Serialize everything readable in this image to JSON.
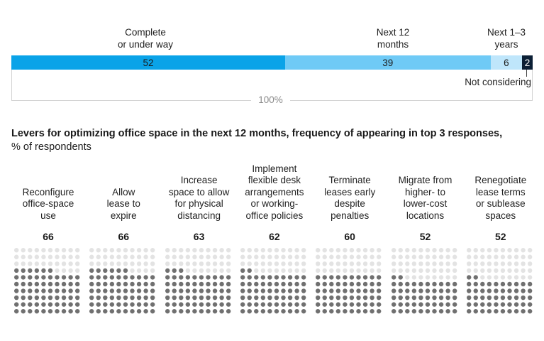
{
  "stacked_bar": {
    "total_label": "100%",
    "not_considering_label": "Not considering",
    "segments": [
      {
        "label_lines": [
          "Complete",
          "or under way"
        ],
        "value": 52,
        "color": "#0aa3e8",
        "text_color": "#1a1a1a"
      },
      {
        "label_lines": [
          "Next 12",
          "months"
        ],
        "value": 39,
        "color": "#6fcaf6",
        "text_color": "#1a1a1a"
      },
      {
        "label_lines": [
          "Next 1–3",
          "years"
        ],
        "value": 6,
        "color": "#bfe6fb",
        "text_color": "#1a1a1a"
      },
      {
        "label_lines": [],
        "value": 2,
        "color": "#0b1f35",
        "text_color": "#ffffff"
      }
    ]
  },
  "subtitle": {
    "bold": "Levers for optimizing office space in the next 12 months, frequency of appearing in top 3 responses,",
    "normal": "% of respondents"
  },
  "chart_data": {
    "type": "bar",
    "title": "Levers for optimizing office space in the next 12 months, frequency of appearing in top 3 responses,",
    "ylabel": "% of respondents",
    "categories": [
      "Reconfigure office-space use",
      "Allow lease to expire",
      "Increase space to allow for physical distancing",
      "Implement flexible desk arrangements or working-office policies",
      "Terminate leases early despite penalties",
      "Migrate from higher- to lower-cost locations",
      "Renegotiate lease terms or sublease spaces"
    ],
    "category_lines": [
      [
        "Reconfigure",
        "office-space",
        "use"
      ],
      [
        "Allow",
        "lease to",
        "expire"
      ],
      [
        "Increase",
        "space to allow",
        "for physical",
        "distancing"
      ],
      [
        "Implement",
        "flexible desk",
        "arrangements",
        "or working-",
        "office policies"
      ],
      [
        "Terminate",
        "leases early",
        "despite",
        "penalties"
      ],
      [
        "Migrate from",
        "higher- to",
        "lower-cost",
        "locations"
      ],
      [
        "Renegotiate",
        "lease terms",
        "or sublease",
        "spaces"
      ]
    ],
    "values": [
      66,
      66,
      63,
      62,
      60,
      52,
      52
    ],
    "ylim": [
      0,
      100
    ],
    "colors": {
      "filled": "#707070",
      "empty": "#e3e3e3"
    }
  }
}
